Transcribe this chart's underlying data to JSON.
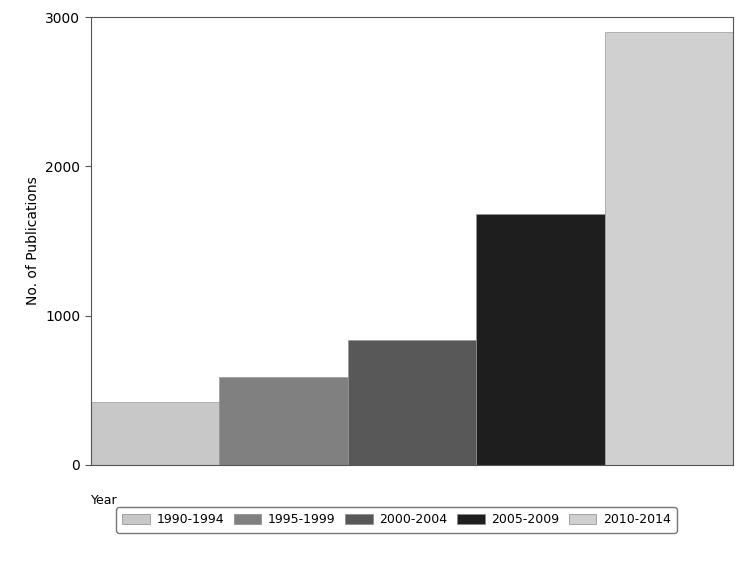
{
  "categories": [
    "1990-1994",
    "1995-1999",
    "2000-2004",
    "2005-2009",
    "2010-2014"
  ],
  "values": [
    420,
    590,
    840,
    1680,
    2900
  ],
  "bar_colors": [
    "#c8c8c8",
    "#808080",
    "#585858",
    "#1e1e1e",
    "#d0d0d0"
  ],
  "ylabel": "No. of Publications",
  "ylim": [
    0,
    3000
  ],
  "yticks": [
    0,
    1000,
    2000,
    3000
  ],
  "legend_label": "Year",
  "background_color": "#ffffff",
  "bar_edge_color": "#999999",
  "legend_items": [
    {
      "label": "1990-1994",
      "color": "#c8c8c8"
    },
    {
      "label": "1995-1999",
      "color": "#808080"
    },
    {
      "label": "2000-2004",
      "color": "#585858"
    },
    {
      "label": "2005-2009",
      "color": "#1e1e1e"
    },
    {
      "label": "2010-2014",
      "color": "#d0d0d0"
    }
  ],
  "ylabel_fontsize": 10,
  "tick_fontsize": 10
}
